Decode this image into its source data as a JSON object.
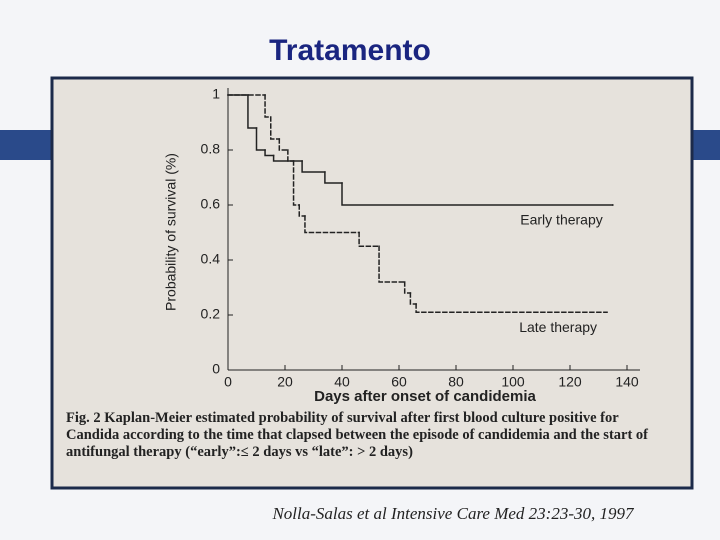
{
  "slide_title": "Tratamento",
  "citation": "Nolla-Salas et al  Intensive Care Med 23:23-30, 1997",
  "caption": "Fig. 2  Kaplan-Meier estimated probability of survival after first blood culture positive for Candida according to the time that clapsed between the episode of candidemia and the start of antifungal therapy (“early”:≤ 2 days vs “late”: > 2 days)",
  "chart_data": {
    "type": "step",
    "x_label": "Days after onset of candidemia",
    "y_label": "Probability of survival (%)",
    "xlim": [
      0,
      140
    ],
    "xticks": [
      0,
      20,
      40,
      60,
      80,
      100,
      120,
      140
    ],
    "ylim": [
      0,
      1
    ],
    "yticks": [
      0,
      0.2,
      0.4,
      0.6,
      0.8,
      1
    ],
    "series": [
      {
        "name": "Early therapy",
        "color": "#222222",
        "style": "solid",
        "x": [
          0,
          7,
          10,
          13,
          16,
          26,
          34,
          40,
          135
        ],
        "values": [
          1,
          0.88,
          0.8,
          0.78,
          0.76,
          0.72,
          0.68,
          0.6,
          0.6
        ]
      },
      {
        "name": "Late therapy",
        "color": "#222222",
        "style": "dashed",
        "x": [
          0,
          13,
          15,
          18,
          21,
          23,
          25,
          27,
          46,
          53,
          62,
          64,
          66,
          133
        ],
        "values": [
          1,
          0.92,
          0.84,
          0.8,
          0.76,
          0.6,
          0.56,
          0.5,
          0.45,
          0.32,
          0.28,
          0.24,
          0.21,
          0.21
        ]
      }
    ]
  }
}
